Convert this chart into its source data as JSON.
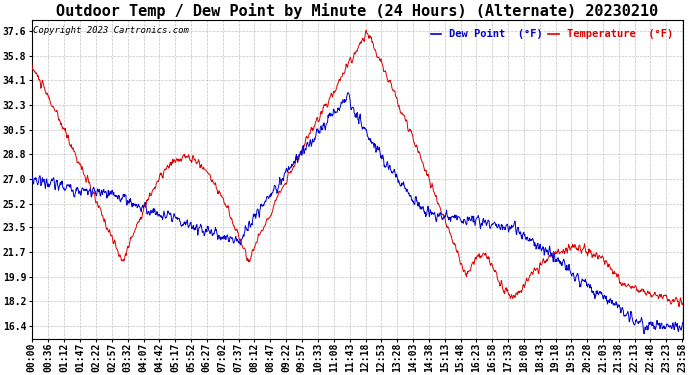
{
  "title": "Outdoor Temp / Dew Point by Minute (24 Hours) (Alternate) 20230210",
  "copyright": "Copyright 2023 Cartronics.com",
  "legend_dew": "Dew Point  (°F)",
  "legend_temp": "Temperature  (°F)",
  "yticks": [
    16.4,
    18.2,
    19.9,
    21.7,
    23.5,
    25.2,
    27.0,
    28.8,
    30.5,
    32.3,
    34.1,
    35.8,
    37.6
  ],
  "ylim": [
    15.5,
    38.4
  ],
  "xtick_labels": [
    "00:00",
    "00:36",
    "01:12",
    "01:47",
    "02:22",
    "02:57",
    "03:32",
    "04:07",
    "04:42",
    "05:17",
    "05:52",
    "06:27",
    "07:02",
    "07:37",
    "08:12",
    "08:47",
    "09:22",
    "09:57",
    "10:33",
    "11:08",
    "11:43",
    "12:18",
    "12:53",
    "13:28",
    "14:03",
    "14:38",
    "15:13",
    "15:48",
    "16:23",
    "16:58",
    "17:33",
    "18:08",
    "18:43",
    "19:18",
    "19:53",
    "20:28",
    "21:03",
    "21:38",
    "22:13",
    "22:48",
    "23:23",
    "23:58"
  ],
  "bg_color": "#ffffff",
  "grid_color": "#bbbbbb",
  "temp_color": "#dd0000",
  "dew_color": "#0000cc",
  "title_fontsize": 11,
  "tick_fontsize": 7,
  "figsize": [
    6.9,
    3.75
  ],
  "dpi": 100
}
